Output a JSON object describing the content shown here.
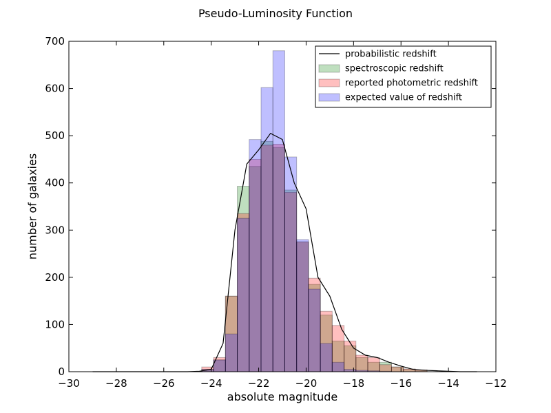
{
  "chart_data": {
    "type": "bar",
    "title": "Pseudo-Luminosity Function",
    "xlabel": "absolute magnitude",
    "ylabel": "number of galaxies",
    "xlim": [
      -30,
      -12
    ],
    "ylim": [
      0,
      700
    ],
    "xticks": [
      -30,
      -28,
      -26,
      -24,
      -22,
      -20,
      -18,
      -16,
      -14,
      -12
    ],
    "xtick_labels": [
      "−30",
      "−28",
      "−26",
      "−24",
      "−22",
      "−20",
      "−18",
      "−16",
      "−14",
      "−12"
    ],
    "yticks": [
      0,
      100,
      200,
      300,
      400,
      500,
      600,
      700
    ],
    "ytick_labels": [
      "0",
      "100",
      "200",
      "300",
      "400",
      "500",
      "600",
      "700"
    ],
    "grid": false,
    "legend_position": "top-right",
    "bin_edges": [
      -24.4,
      -23.9,
      -23.4,
      -22.9,
      -22.4,
      -21.9,
      -21.4,
      -20.9,
      -20.4,
      -19.9,
      -19.4,
      -18.9,
      -18.4,
      -17.9,
      -17.4,
      -16.9,
      -16.4,
      -15.9,
      -15.4,
      -14.9
    ],
    "histograms": [
      {
        "name": "spectroscopic redshift",
        "color": "#008000",
        "values": [
          5,
          25,
          160,
          393,
          435,
          488,
          475,
          385,
          275,
          185,
          120,
          65,
          55,
          30,
          20,
          20,
          10,
          5,
          3
        ]
      },
      {
        "name": "reported photometric redshift",
        "color": "#ff0000",
        "values": [
          10,
          30,
          160,
          335,
          450,
          480,
          482,
          380,
          275,
          198,
          128,
          98,
          65,
          35,
          30,
          15,
          10,
          6,
          4
        ]
      },
      {
        "name": "expected value of redshift",
        "color": "#0000ff",
        "values": [
          5,
          25,
          80,
          325,
          492,
          602,
          680,
          455,
          280,
          175,
          60,
          20,
          5,
          3,
          2,
          1,
          0,
          0,
          0
        ]
      }
    ],
    "line": {
      "name": "probabilistic redshift",
      "color": "#000000",
      "x": [
        -29,
        -28,
        -27,
        -26,
        -25,
        -24.5,
        -24,
        -23.5,
        -23,
        -22.5,
        -22,
        -21.5,
        -21,
        -20.5,
        -20,
        -19.5,
        -19,
        -18.5,
        -18,
        -17.5,
        -17,
        -16.5,
        -16,
        -15.5,
        -15,
        -14.5,
        -14,
        -13.5,
        -13,
        -12.8
      ],
      "y": [
        0,
        0,
        0,
        0,
        0,
        1,
        5,
        60,
        300,
        440,
        470,
        505,
        492,
        400,
        345,
        200,
        160,
        90,
        50,
        35,
        30,
        20,
        12,
        5,
        3,
        2,
        1,
        0,
        0,
        0
      ]
    }
  }
}
